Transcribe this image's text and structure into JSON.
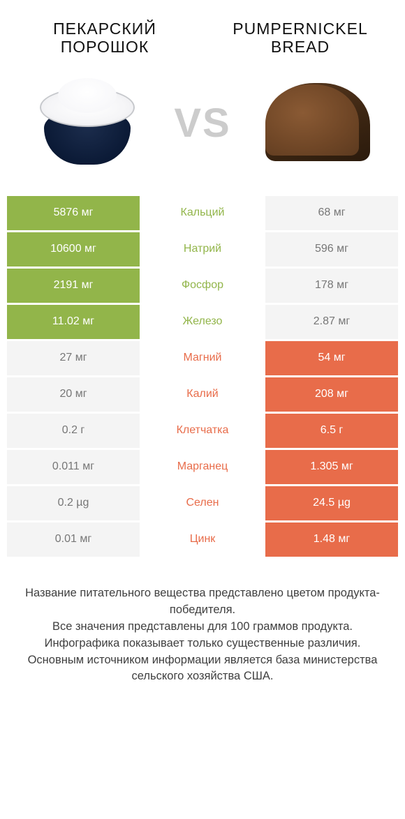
{
  "colors": {
    "left": "#92b54a",
    "right": "#e86c4a",
    "left_text": "#ffffff",
    "right_text": "#ffffff",
    "neutral_bg": "#f4f4f4",
    "neutral_text": "#777777"
  },
  "titles": {
    "left": "Пекарский порошок",
    "right": "Pumpernickel bread"
  },
  "vs": "VS",
  "rows": [
    {
      "label": "Кальций",
      "winner": "left",
      "left": "5876 мг",
      "right": "68 мг"
    },
    {
      "label": "Натрий",
      "winner": "left",
      "left": "10600 мг",
      "right": "596 мг"
    },
    {
      "label": "Фосфор",
      "winner": "left",
      "left": "2191 мг",
      "right": "178 мг"
    },
    {
      "label": "Железо",
      "winner": "left",
      "left": "11.02 мг",
      "right": "2.87 мг"
    },
    {
      "label": "Магний",
      "winner": "right",
      "left": "27 мг",
      "right": "54 мг"
    },
    {
      "label": "Калий",
      "winner": "right",
      "left": "20 мг",
      "right": "208 мг"
    },
    {
      "label": "Клетчатка",
      "winner": "right",
      "left": "0.2 г",
      "right": "6.5 г"
    },
    {
      "label": "Марганец",
      "winner": "right",
      "left": "0.011 мг",
      "right": "1.305 мг"
    },
    {
      "label": "Селен",
      "winner": "right",
      "left": "0.2 µg",
      "right": "24.5 µg"
    },
    {
      "label": "Цинк",
      "winner": "right",
      "left": "0.01 мг",
      "right": "1.48 мг"
    }
  ],
  "footer": "Название питательного вещества представлено цветом продукта-победителя.\nВсе значения представлены для 100 граммов продукта.\nИнфографика показывает только существенные различия.\nОсновным источником информации является база министерства сельского хозяйства США."
}
